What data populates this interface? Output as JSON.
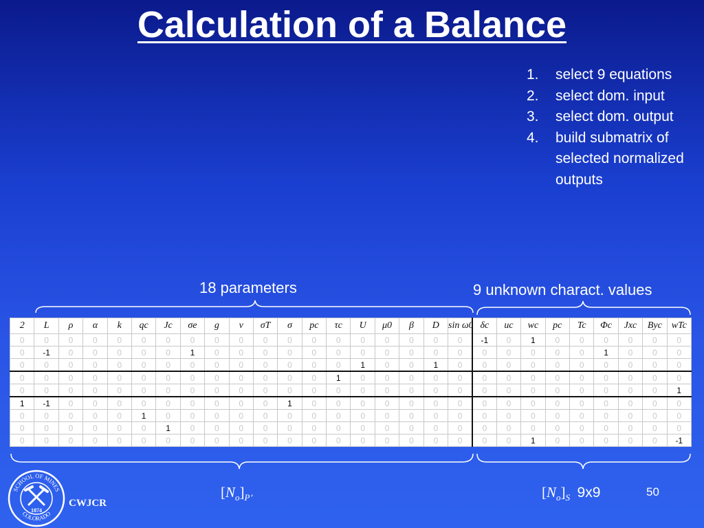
{
  "title": "Calculation of a Balance",
  "steps": [
    {
      "num": "1.",
      "text": "select 9 equations"
    },
    {
      "num": "2.",
      "text": "select dom. input"
    },
    {
      "num": "3.",
      "text": "select dom. output"
    },
    {
      "num": "4.",
      "text": "build submatrix of selected normalized outputs"
    }
  ],
  "labels": {
    "params": "18 parameters",
    "unknowns": "9 unknown charact. values"
  },
  "matrix": {
    "headers": [
      "2",
      "L",
      "ρ",
      "α",
      "k",
      "qc",
      "Jc",
      "σe",
      "g",
      "ν",
      "σT",
      "σ",
      "pc",
      "τc",
      "U",
      "μ0",
      "β",
      "D",
      "sin ω0",
      "δc",
      "uc",
      "wc",
      "pc",
      "Tc",
      "Φc",
      "Jxc",
      "Byc",
      "wTc"
    ],
    "rows": [
      [
        "0",
        "0",
        "0",
        "0",
        "0",
        "0",
        "0",
        "0",
        "0",
        "0",
        "0",
        "0",
        "0",
        "0",
        "0",
        "0",
        "0",
        "0",
        "0",
        "-1",
        "0",
        "1",
        "0",
        "0",
        "0",
        "0",
        "0",
        "0"
      ],
      [
        "0",
        "-1",
        "0",
        "0",
        "0",
        "0",
        "0",
        "1",
        "0",
        "0",
        "0",
        "0",
        "0",
        "0",
        "0",
        "0",
        "0",
        "0",
        "0",
        "0",
        "0",
        "0",
        "0",
        "0",
        "1",
        "0",
        "0",
        "0"
      ],
      [
        "0",
        "0",
        "0",
        "0",
        "0",
        "0",
        "0",
        "0",
        "0",
        "0",
        "0",
        "0",
        "0",
        "0",
        "1",
        "0",
        "0",
        "1",
        "0",
        "0",
        "0",
        "0",
        "0",
        "0",
        "0",
        "0",
        "0",
        "0"
      ],
      [
        "0",
        "0",
        "0",
        "0",
        "0",
        "0",
        "0",
        "0",
        "0",
        "0",
        "0",
        "0",
        "0",
        "1",
        "0",
        "0",
        "0",
        "0",
        "0",
        "0",
        "0",
        "0",
        "0",
        "0",
        "0",
        "0",
        "0",
        "0"
      ],
      [
        "0",
        "0",
        "0",
        "0",
        "0",
        "0",
        "0",
        "0",
        "0",
        "0",
        "0",
        "0",
        "0",
        "0",
        "0",
        "0",
        "0",
        "0",
        "0",
        "0",
        "0",
        "0",
        "0",
        "0",
        "0",
        "0",
        "0",
        "1"
      ],
      [
        "1",
        "-1",
        "0",
        "0",
        "0",
        "0",
        "0",
        "0",
        "0",
        "0",
        "0",
        "1",
        "0",
        "0",
        "0",
        "0",
        "0",
        "0",
        "0",
        "0",
        "0",
        "0",
        "0",
        "0",
        "0",
        "0",
        "0",
        "0"
      ],
      [
        "0",
        "0",
        "0",
        "0",
        "0",
        "1",
        "0",
        "0",
        "0",
        "0",
        "0",
        "0",
        "0",
        "0",
        "0",
        "0",
        "0",
        "0",
        "0",
        "0",
        "0",
        "0",
        "0",
        "0",
        "0",
        "0",
        "0",
        "0"
      ],
      [
        "0",
        "0",
        "0",
        "0",
        "0",
        "0",
        "1",
        "0",
        "0",
        "0",
        "0",
        "0",
        "0",
        "0",
        "0",
        "0",
        "0",
        "0",
        "0",
        "0",
        "0",
        "0",
        "0",
        "0",
        "0",
        "0",
        "0",
        "0"
      ],
      [
        "0",
        "0",
        "0",
        "0",
        "0",
        "0",
        "0",
        "0",
        "0",
        "0",
        "0",
        "0",
        "0",
        "0",
        "0",
        "0",
        "0",
        "0",
        "0",
        "0",
        "0",
        "1",
        "0",
        "0",
        "0",
        "0",
        "0",
        "-1"
      ]
    ]
  },
  "footer": {
    "left_symbol": "N",
    "left_sub_o": "o",
    "left_sub": "P’",
    "right_symbol": "N",
    "right_sub_o": "o",
    "right_sub": "S",
    "right_size": "9x9"
  },
  "page_number": "50",
  "logo": {
    "ring_top": "SCHOOL OF MINES",
    "ring_bottom": "COLORADO",
    "year": "1874",
    "icon": "pickaxe-hammer-icon"
  },
  "brand": "CWJCR"
}
